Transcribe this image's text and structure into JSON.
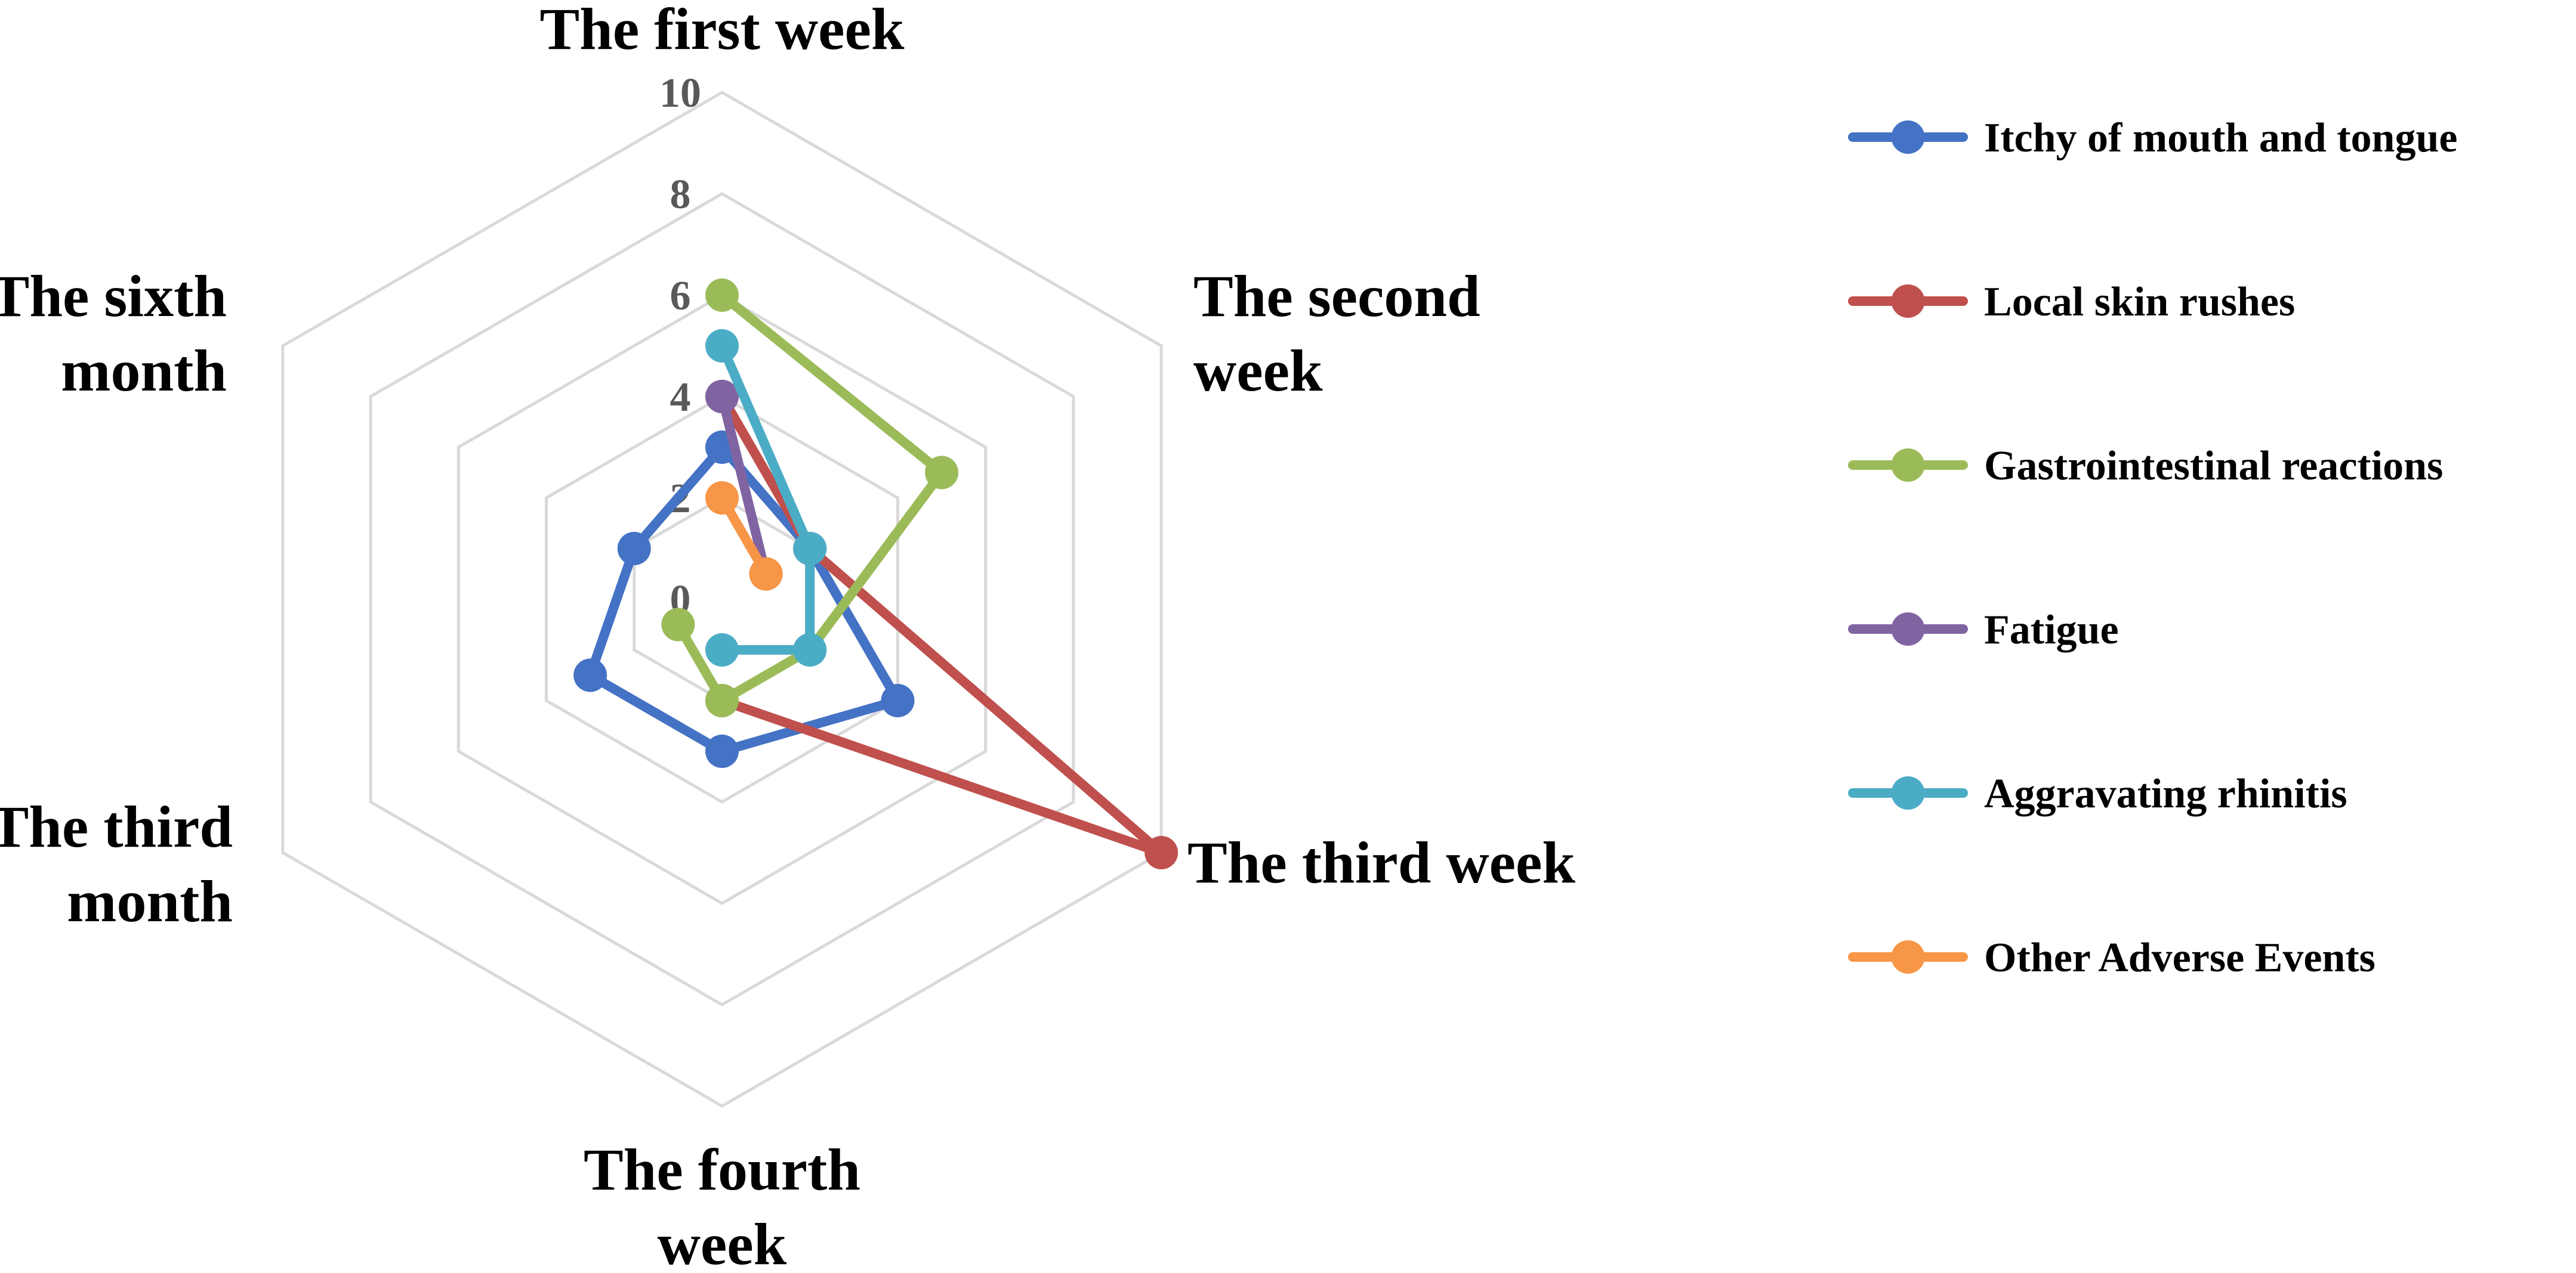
{
  "chart_data": {
    "type": "radar",
    "categories": [
      "The first week",
      "The second week",
      "The third week",
      "The fourth week",
      "The third month",
      "The sixth month"
    ],
    "category_label_lines": [
      [
        "The first week"
      ],
      [
        "The second",
        "week"
      ],
      [
        "The third week"
      ],
      [
        "The fourth",
        "week"
      ],
      [
        "The third",
        "month"
      ],
      [
        "The sixth",
        "month"
      ]
    ],
    "rlim": [
      0,
      10
    ],
    "rticks": [
      "0",
      "2",
      "4",
      "6",
      "8",
      "10"
    ],
    "grid": true,
    "legend_position": "right",
    "series": [
      {
        "name": "Itchy of mouth and tongue",
        "color": "#4472C4",
        "values": [
          3,
          2,
          4,
          3,
          3,
          2
        ]
      },
      {
        "name": "Local skin rushes",
        "color": "#C0504D",
        "values": [
          4,
          2,
          10,
          2,
          null,
          null
        ]
      },
      {
        "name": "Gastrointestinal reactions",
        "color": "#9BBB59",
        "values": [
          6,
          5,
          2,
          2,
          1,
          null
        ]
      },
      {
        "name": "Fatigue",
        "color": "#8064A2",
        "values": [
          4,
          1,
          null,
          null,
          null,
          null
        ]
      },
      {
        "name": "Aggravating rhinitis",
        "color": "#4BACC6",
        "values": [
          5,
          2,
          2,
          1,
          null,
          null
        ]
      },
      {
        "name": "Other Adverse Events",
        "color": "#F79646",
        "values": [
          2,
          1,
          null,
          null,
          null,
          null
        ]
      }
    ]
  }
}
